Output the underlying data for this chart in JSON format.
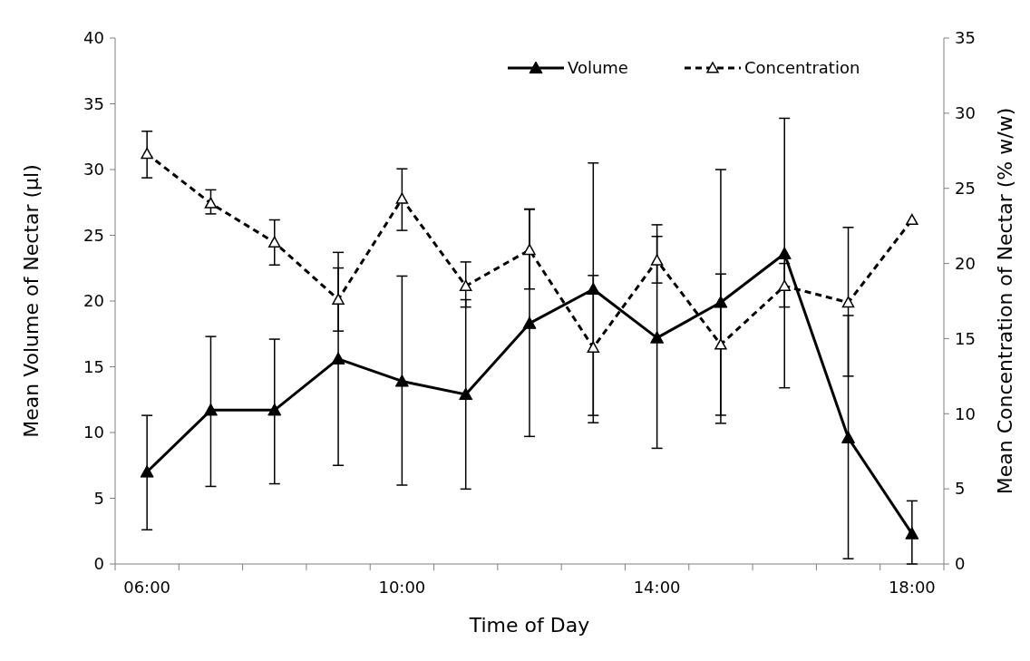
{
  "chart_data": {
    "type": "line",
    "xlabel": "Time of Day",
    "ylabel": "Mean Volume of Nectar  (µl)",
    "y2label": "Mean Concentration of Nectar (% w/w)",
    "categories": [
      "06:00",
      null,
      null,
      null,
      "10:00",
      null,
      null,
      null,
      "14:00",
      null,
      null,
      null,
      "18:00"
    ],
    "ylim": [
      0,
      40
    ],
    "yticks": [
      0,
      5,
      10,
      15,
      20,
      25,
      30,
      35,
      40
    ],
    "y2lim": [
      0,
      35
    ],
    "y2ticks": [
      0,
      5,
      10,
      15,
      20,
      25,
      30,
      35
    ],
    "grid": false,
    "legend": "top right",
    "series": [
      {
        "name": "Volume",
        "type": "line",
        "color": "#000000",
        "marker": "triangle",
        "line_style": "solid",
        "values": [
          7.0,
          11.7,
          11.7,
          15.6,
          13.9,
          12.9,
          18.3,
          20.9,
          17.2,
          19.9,
          23.6,
          9.6,
          2.3
        ],
        "errors": [
          [
            2.6,
            11.3
          ],
          [
            5.9,
            17.3
          ],
          [
            6.1,
            17.1
          ],
          [
            7.5,
            23.7
          ],
          [
            6.0,
            21.9
          ],
          [
            5.7,
            20.1
          ],
          [
            9.7,
            27.0
          ],
          [
            11.3,
            30.5
          ],
          [
            8.8,
            25.8
          ],
          [
            10.7,
            30.0
          ],
          [
            13.4,
            33.9
          ],
          [
            0.4,
            18.9
          ],
          [
            0,
            4.8
          ]
        ]
      },
      {
        "name": "Concentration",
        "type": "line",
        "axis": "y2",
        "color": "#000000",
        "marker": "triangle",
        "line_style": "dashed",
        "values": [
          27.3,
          24.0,
          21.4,
          17.6,
          24.3,
          18.5,
          20.9,
          14.4,
          20.2,
          14.6,
          18.5,
          17.4,
          22.9
        ],
        "errors": [
          [
            25.7,
            28.8
          ],
          [
            23.3,
            24.9
          ],
          [
            19.9,
            22.9
          ],
          [
            15.5,
            19.7
          ],
          [
            22.2,
            26.3
          ],
          [
            17.1,
            20.1
          ],
          [
            18.3,
            23.6
          ],
          [
            9.4,
            19.2
          ],
          [
            18.7,
            21.8
          ],
          [
            9.9,
            19.3
          ],
          [
            17.1,
            20.0
          ],
          [
            12.5,
            22.4
          ],
          null
        ]
      }
    ]
  }
}
